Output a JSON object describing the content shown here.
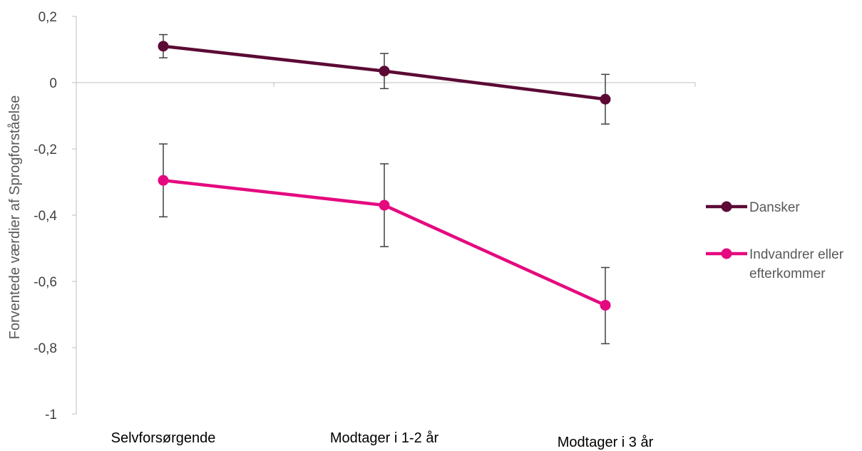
{
  "chart_data": {
    "type": "line",
    "title": "",
    "ylabel": "Forventede værdier af Sprogforståelse",
    "xlabel": "",
    "categories": [
      "Selvforsørgende",
      "Modtager i 1-2 år",
      "Modtager i 3 år"
    ],
    "ylim": [
      -1,
      0.2
    ],
    "yticks": [
      0.2,
      0,
      -0.2,
      -0.4,
      -0.6,
      -0.8,
      -1
    ],
    "ytick_labels": [
      "0,2",
      "0",
      "-0,2",
      "-0,4",
      "-0,6",
      "-0,8",
      "-1"
    ],
    "grid": false,
    "legend_position": "right",
    "series": [
      {
        "name": "Dansker",
        "color": "#5c0a35",
        "values": [
          0.11,
          0.035,
          -0.05
        ],
        "error_low": [
          0.075,
          -0.018,
          -0.125
        ],
        "error_high": [
          0.145,
          0.088,
          0.025
        ]
      },
      {
        "name": "Indvandrer eller efterkommer",
        "legend_lines": [
          "Indvandrer eller",
          "efterkommer"
        ],
        "color": "#e5097f",
        "values": [
          -0.295,
          -0.37,
          -0.672
        ],
        "error_low": [
          -0.405,
          -0.495,
          -0.788
        ],
        "error_high": [
          -0.185,
          -0.245,
          -0.558
        ]
      }
    ],
    "error_bar_color": "#404040"
  }
}
